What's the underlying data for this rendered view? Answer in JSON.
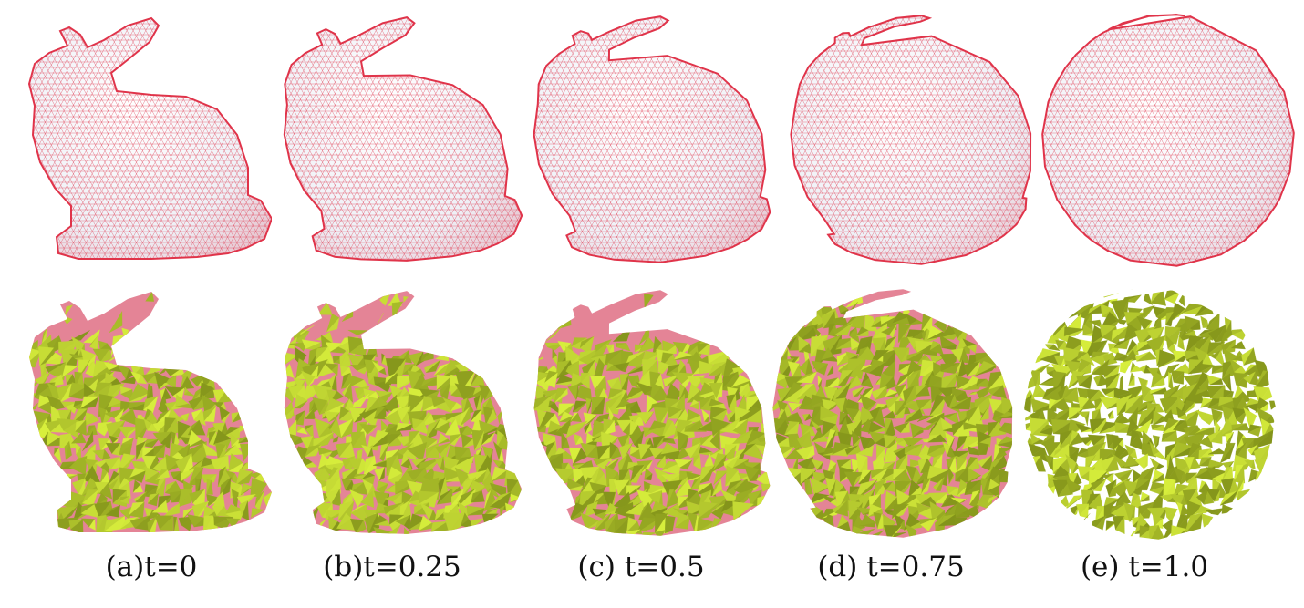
{
  "figure": {
    "captions": [
      "(a)t=0",
      "(b)t=0.25",
      "(c) t=0.5",
      "(d) t=0.75",
      "(e) t=1.0"
    ],
    "stages_t": [
      0,
      0.25,
      0.5,
      0.75,
      1.0
    ],
    "top_row": {
      "render_style": "wireframe-mesh",
      "surface_color": "#eef0f6",
      "wire_color": "#e0344a"
    },
    "bottom_row": {
      "render_style": "flat-shaded-facets",
      "facet_color": "#d8ef3c",
      "facet_dark_color": "#6e7d12",
      "ear_color": "#e48496"
    }
  }
}
